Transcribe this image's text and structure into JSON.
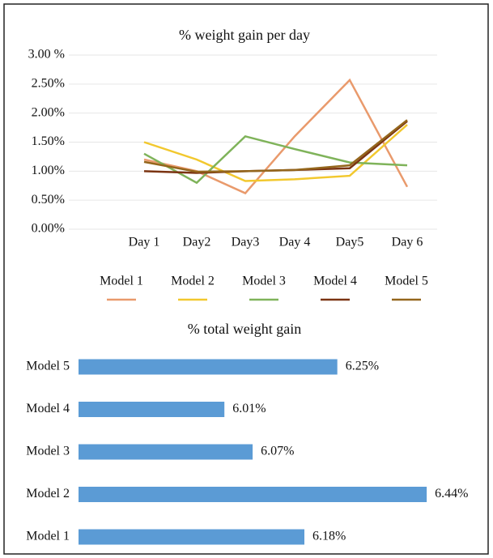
{
  "chart_data": [
    {
      "type": "line",
      "title": "% weight gain per day",
      "categories": [
        "Day 1",
        "Day2",
        "Day3",
        "Day 4",
        "Day5",
        "Day 6"
      ],
      "series": [
        {
          "name": "Model 1",
          "color": "#e99a6c",
          "values": [
            1.2,
            1.0,
            0.62,
            1.6,
            2.57,
            0.73
          ]
        },
        {
          "name": "Model 2",
          "color": "#f2c82e",
          "values": [
            1.5,
            1.2,
            0.83,
            0.86,
            0.92,
            1.8
          ]
        },
        {
          "name": "Model 3",
          "color": "#7fb35a",
          "values": [
            1.3,
            0.8,
            1.6,
            1.38,
            1.15,
            1.1
          ]
        },
        {
          "name": "Model 4",
          "color": "#7b3412",
          "values": [
            1.0,
            0.97,
            1.0,
            1.02,
            1.05,
            1.86
          ]
        },
        {
          "name": "Model 5",
          "color": "#94661c",
          "values": [
            1.16,
            0.99,
            1.0,
            1.02,
            1.1,
            1.88
          ]
        }
      ],
      "ylim": [
        0,
        3
      ],
      "yticks": [
        {
          "value": 0,
          "label": "0.00%"
        },
        {
          "value": 0.5,
          "label": "0.50%"
        },
        {
          "value": 1,
          "label": "1.00%"
        },
        {
          "value": 1.5,
          "label": "1.50%"
        },
        {
          "value": 2,
          "label": "2.00%"
        },
        {
          "value": 2.5,
          "label": "2.50%"
        },
        {
          "value": 3,
          "label": "3.00 %"
        }
      ],
      "grid": true,
      "legend": "bottom"
    },
    {
      "type": "hbar",
      "title": "% total weight gain",
      "categories": [
        "Model 1",
        "Model 2",
        "Model 3",
        "Model 4",
        "Model 5"
      ],
      "values": [
        6.18,
        6.44,
        6.07,
        6.01,
        6.25
      ],
      "value_labels": [
        "6.18%",
        "6.44%",
        "6.07%",
        "6.01%",
        "6.25%"
      ],
      "color": "#5b9bd5",
      "xlim": [
        5.7,
        6.5
      ]
    }
  ]
}
